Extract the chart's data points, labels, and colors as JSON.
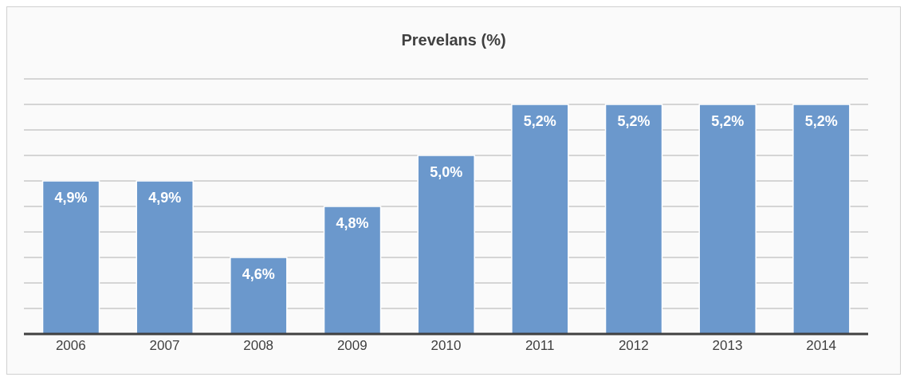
{
  "chart_data": {
    "type": "bar",
    "title": "Prevelans (%)",
    "categories": [
      "2006",
      "2007",
      "2008",
      "2009",
      "2010",
      "2011",
      "2012",
      "2013",
      "2014"
    ],
    "values": [
      4.9,
      4.9,
      4.6,
      4.8,
      5.0,
      5.2,
      5.2,
      5.2,
      5.2
    ],
    "value_labels": [
      "4,9%",
      "4,9%",
      "4,6%",
      "4,8%",
      "5,0%",
      "5,2%",
      "5,2%",
      "5,2%",
      "5,2%"
    ],
    "color": "#6b98cc",
    "ylim": [
      4.3,
      5.3
    ],
    "grid": "y",
    "tick_labels": "x"
  }
}
